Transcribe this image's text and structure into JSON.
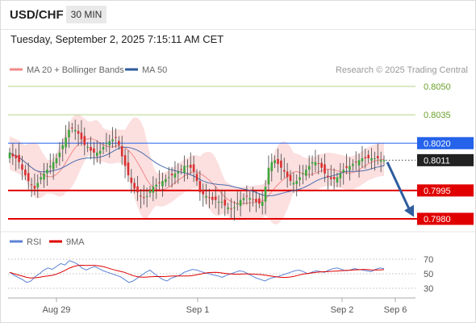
{
  "header": {
    "symbol": "USD/CHF",
    "timeframe": "30 MIN",
    "datetime": "Tuesday, September 2, 2025 7:15:11 AM CET"
  },
  "chart_data": {
    "type": "candlestick",
    "title": "USD/CHF",
    "timeframe": "30 MIN",
    "legend": [
      {
        "label": "MA 20 + Bollinger Bands",
        "color": "#f08a8a"
      },
      {
        "label": "MA 50",
        "color": "#2e5a9c"
      }
    ],
    "credit": "Research © 2025 Trading Central",
    "price_levels": [
      {
        "value": "0.8050",
        "role": "resistance",
        "color": "#b4d48a"
      },
      {
        "value": "0.8035",
        "role": "resistance",
        "color": "#b4d48a"
      },
      {
        "value": "0.8020",
        "role": "pivot",
        "color": "#2563eb"
      },
      {
        "value": "0.8011",
        "role": "last",
        "color": "#222222"
      },
      {
        "value": "0.7995",
        "role": "target",
        "color": "#e00000"
      },
      {
        "value": "0.7980",
        "role": "target",
        "color": "#e00000"
      }
    ],
    "last_price": 0.8011,
    "forecast": {
      "from": 0.801,
      "to": 0.7981,
      "direction": "down",
      "color": "#2f5d9e"
    },
    "x_labels": [
      "Aug 29",
      "Sep 1",
      "Sep 2",
      "Sep 6"
    ],
    "price_series": [
      0.8015,
      0.8013,
      0.8012,
      0.801,
      0.8006,
      0.8003,
      0.8,
      0.7998,
      0.7996,
      0.7999,
      0.8002,
      0.8004,
      0.8006,
      0.8008,
      0.801,
      0.8012,
      0.8015,
      0.8019,
      0.8023,
      0.8027,
      0.8028,
      0.8027,
      0.8025,
      0.8022,
      0.8019,
      0.8018,
      0.8016,
      0.8015,
      0.8015,
      0.8016,
      0.8018,
      0.802,
      0.8021,
      0.8022,
      0.8023,
      0.8019,
      0.8013,
      0.8008,
      0.8003,
      0.7999,
      0.7996,
      0.7994,
      0.7992,
      0.7991,
      0.7992,
      0.7995,
      0.7997,
      0.7998,
      0.7999,
      0.8,
      0.8001,
      0.8002,
      0.8003,
      0.8004,
      0.8005,
      0.8006,
      0.8008,
      0.8008,
      0.8007,
      0.8005,
      0.8,
      0.7994,
      0.7993,
      0.7992,
      0.7991,
      0.799,
      0.799,
      0.7989,
      0.7989,
      0.7987,
      0.7986,
      0.7985,
      0.7986,
      0.7988,
      0.799,
      0.7991,
      0.7992,
      0.7991,
      0.799,
      0.7989,
      0.7988,
      0.7989,
      0.7997,
      0.8007,
      0.801,
      0.8011,
      0.8009,
      0.8007,
      0.8005,
      0.8002,
      0.8,
      0.7999,
      0.8,
      0.8002,
      0.8004,
      0.8006,
      0.8008,
      0.801,
      0.801,
      0.8009,
      0.8007,
      0.8004,
      0.8002,
      0.8001,
      0.8001,
      0.8002,
      0.8004,
      0.8006,
      0.8007,
      0.8008,
      0.8009,
      0.801,
      0.8011,
      0.8012,
      0.8012,
      0.8012,
      0.8012,
      0.8012,
      0.8012,
      0.8011,
      0.8011
    ],
    "rsi": {
      "legend": [
        {
          "label": "RSI",
          "color": "#5b82d6"
        },
        {
          "label": "9MA",
          "color": "#e00000"
        }
      ],
      "levels": [
        "70",
        "50",
        "30"
      ],
      "values": [
        52,
        48,
        45,
        42,
        38,
        40,
        46,
        50,
        55,
        58,
        56,
        60,
        64,
        62,
        68,
        66,
        63,
        58,
        55,
        58,
        60,
        57,
        54,
        52,
        50,
        48,
        46,
        42,
        38,
        40,
        44,
        48,
        52,
        55,
        50,
        46,
        42,
        40,
        44,
        46,
        48,
        52,
        54,
        56,
        55,
        53,
        51,
        50,
        48,
        47,
        45,
        48,
        50,
        52,
        54,
        53,
        50,
        47,
        44,
        42,
        40,
        43,
        45,
        46,
        48,
        50,
        52,
        54,
        55,
        53,
        50,
        52,
        54,
        53,
        52,
        55,
        57,
        58,
        56,
        54,
        55,
        57,
        56,
        55,
        54,
        53,
        56,
        58,
        57
      ]
    }
  }
}
